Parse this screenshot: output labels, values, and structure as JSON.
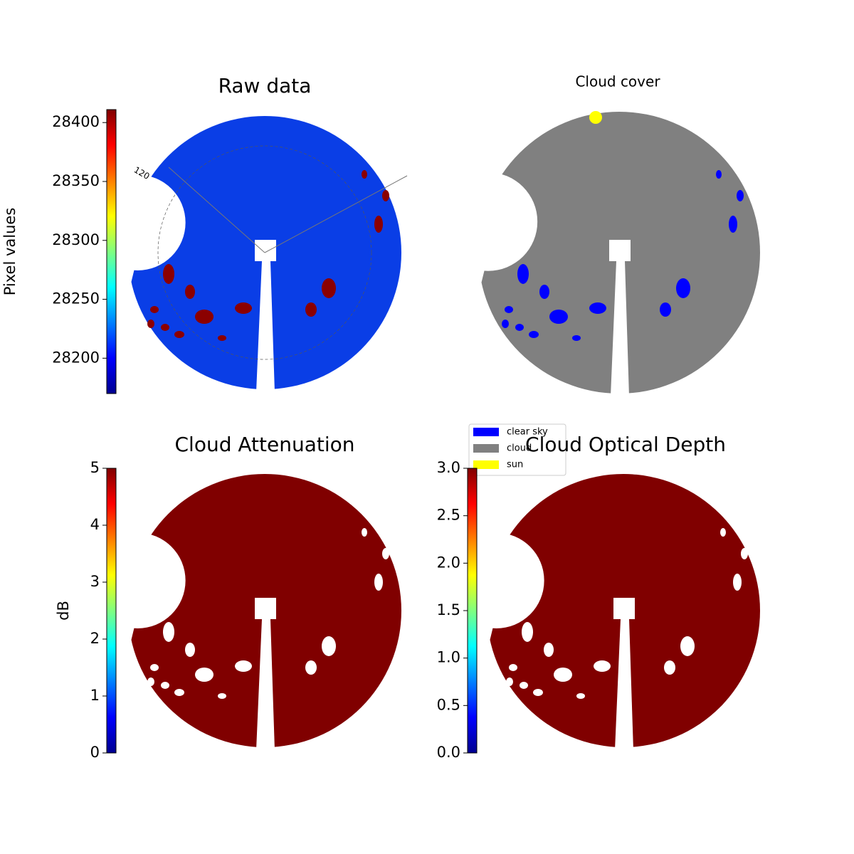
{
  "chart_data": [
    {
      "type": "image",
      "title": "Raw data",
      "colorbar_label": "Pixel values",
      "colormap": "jet",
      "ylim": [
        28170,
        28411
      ],
      "yticks": [
        28200,
        28250,
        28300,
        28350,
        28400
      ],
      "annotations": [
        "120"
      ]
    },
    {
      "type": "image",
      "title": "Cloud cover",
      "legend": [
        {
          "name": "clear sky",
          "color": "#0000ff"
        },
        {
          "name": "cloud",
          "color": "#808080"
        },
        {
          "name": "sun",
          "color": "#ffff00"
        }
      ]
    },
    {
      "type": "image",
      "title": "Cloud Attenuation",
      "colorbar_label": "dB",
      "colormap": "jet",
      "ylim": [
        0,
        5
      ],
      "yticks": [
        0,
        1,
        2,
        3,
        4,
        5
      ]
    },
    {
      "type": "image",
      "title": "Cloud Optical Depth",
      "colormap": "jet",
      "ylim": [
        0,
        3
      ],
      "yticks": [
        {
          "value": 0,
          "label": "0.0"
        },
        0.5,
        {
          "value": 1,
          "label": "1.0"
        },
        1.5,
        {
          "value": 2,
          "label": "2.0"
        },
        2.5,
        {
          "value": 3,
          "label": "3.0"
        }
      ]
    }
  ]
}
